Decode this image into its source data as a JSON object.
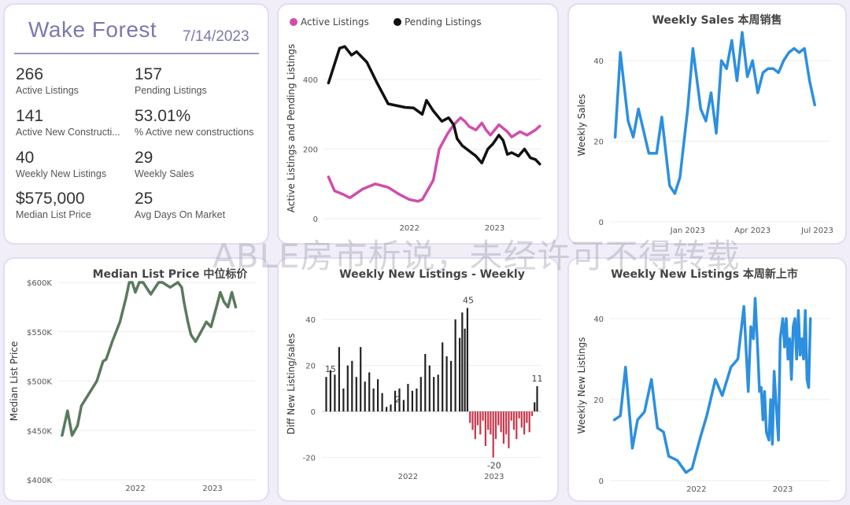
{
  "kpi_panel": {
    "title": "Wake Forest",
    "date": "7/14/2023",
    "items": [
      {
        "value": "266",
        "label": "Active Listings"
      },
      {
        "value": "157",
        "label": "Pending Listings"
      },
      {
        "value": "141",
        "label": "Active New Constructi..."
      },
      {
        "value": "53.01%",
        "label": "% Active new constructions"
      },
      {
        "value": "40",
        "label": "Weekly New Listings"
      },
      {
        "value": "29",
        "label": "Weekly Sales"
      },
      {
        "value": "$575,000",
        "label": "Median List Price"
      },
      {
        "value": "25",
        "label": "Avg Days On Market"
      }
    ]
  },
  "watermark": "ABLE房市析说，未经许可不得转载",
  "chart_data": [
    {
      "id": "listings",
      "type": "line",
      "title": "",
      "ylabel": "Active Listings and Pending Listings",
      "ylim": [
        0,
        520
      ],
      "yticks": [
        0,
        200,
        400
      ],
      "xlim": [
        2021.0,
        2023.55
      ],
      "xticks": [
        {
          "value": 2022.0,
          "label": "2022"
        },
        {
          "value": 2023.0,
          "label": "2023"
        }
      ],
      "legend_position": "top-left",
      "series": [
        {
          "name": "Active Listings",
          "color": "#d24dab",
          "points": [
            [
              2021.05,
              120
            ],
            [
              2021.12,
              80
            ],
            [
              2021.22,
              70
            ],
            [
              2021.3,
              60
            ],
            [
              2021.45,
              85
            ],
            [
              2021.6,
              100
            ],
            [
              2021.75,
              90
            ],
            [
              2021.88,
              70
            ],
            [
              2022.0,
              55
            ],
            [
              2022.1,
              50
            ],
            [
              2022.15,
              55
            ],
            [
              2022.28,
              110
            ],
            [
              2022.35,
              200
            ],
            [
              2022.45,
              245
            ],
            [
              2022.52,
              270
            ],
            [
              2022.6,
              290
            ],
            [
              2022.65,
              280
            ],
            [
              2022.7,
              265
            ],
            [
              2022.78,
              255
            ],
            [
              2022.85,
              275
            ],
            [
              2022.9,
              255
            ],
            [
              2022.95,
              240
            ],
            [
              2023.05,
              270
            ],
            [
              2023.15,
              250
            ],
            [
              2023.2,
              235
            ],
            [
              2023.3,
              250
            ],
            [
              2023.38,
              240
            ],
            [
              2023.48,
              255
            ],
            [
              2023.53,
              266
            ]
          ]
        },
        {
          "name": "Pending Listings",
          "color": "#111111",
          "points": [
            [
              2021.05,
              390
            ],
            [
              2021.18,
              490
            ],
            [
              2021.24,
              495
            ],
            [
              2021.32,
              470
            ],
            [
              2021.38,
              480
            ],
            [
              2021.5,
              450
            ],
            [
              2021.62,
              390
            ],
            [
              2021.75,
              330
            ],
            [
              2021.95,
              320
            ],
            [
              2022.05,
              318
            ],
            [
              2022.15,
              300
            ],
            [
              2022.2,
              340
            ],
            [
              2022.28,
              310
            ],
            [
              2022.38,
              280
            ],
            [
              2022.46,
              290
            ],
            [
              2022.52,
              270
            ],
            [
              2022.56,
              230
            ],
            [
              2022.62,
              210
            ],
            [
              2022.7,
              195
            ],
            [
              2022.78,
              180
            ],
            [
              2022.85,
              160
            ],
            [
              2022.92,
              200
            ],
            [
              2022.98,
              215
            ],
            [
              2023.05,
              240
            ],
            [
              2023.1,
              225
            ],
            [
              2023.15,
              185
            ],
            [
              2023.2,
              190
            ],
            [
              2023.28,
              180
            ],
            [
              2023.35,
              200
            ],
            [
              2023.42,
              175
            ],
            [
              2023.48,
              170
            ],
            [
              2023.53,
              157
            ]
          ]
        }
      ]
    },
    {
      "id": "weekly-sales",
      "type": "line",
      "title": "Weekly Sales 本周销售",
      "ylabel": "Weekly Sales",
      "ylim": [
        0,
        48
      ],
      "yticks": [
        0,
        20,
        40
      ],
      "xlim": [
        2022.7,
        2023.55
      ],
      "xticks": [
        {
          "value": 2023.0,
          "label": "Jan 2023"
        },
        {
          "value": 2023.25,
          "label": "Apr 2023"
        },
        {
          "value": 2023.5,
          "label": "Jul 2023"
        }
      ],
      "series": [
        {
          "name": "",
          "color": "#2d8fdf",
          "points": [
            [
              2022.72,
              21
            ],
            [
              2022.74,
              42
            ],
            [
              2022.77,
              25
            ],
            [
              2022.79,
              21
            ],
            [
              2022.81,
              28
            ],
            [
              2022.85,
              17
            ],
            [
              2022.88,
              17
            ],
            [
              2022.9,
              26
            ],
            [
              2022.93,
              9
            ],
            [
              2022.95,
              7
            ],
            [
              2022.97,
              11
            ],
            [
              2023.0,
              28
            ],
            [
              2023.02,
              43
            ],
            [
              2023.05,
              28
            ],
            [
              2023.07,
              25
            ],
            [
              2023.09,
              32
            ],
            [
              2023.11,
              22
            ],
            [
              2023.13,
              40
            ],
            [
              2023.15,
              38
            ],
            [
              2023.17,
              45
            ],
            [
              2023.19,
              35
            ],
            [
              2023.21,
              47
            ],
            [
              2023.23,
              36
            ],
            [
              2023.25,
              40
            ],
            [
              2023.27,
              32
            ],
            [
              2023.29,
              37
            ],
            [
              2023.31,
              38
            ],
            [
              2023.33,
              38
            ],
            [
              2023.35,
              37
            ],
            [
              2023.37,
              40
            ],
            [
              2023.39,
              42
            ],
            [
              2023.41,
              43
            ],
            [
              2023.43,
              42
            ],
            [
              2023.45,
              43
            ],
            [
              2023.47,
              35
            ],
            [
              2023.49,
              29
            ]
          ]
        }
      ]
    },
    {
      "id": "median-price",
      "type": "line",
      "title": "Median List Price  中位标价",
      "ylabel": "Median List Price",
      "ylim": [
        400000,
        600000
      ],
      "yticks": [
        {
          "value": 400000,
          "label": "$400K"
        },
        {
          "value": 450000,
          "label": "$450K"
        },
        {
          "value": 500000,
          "label": "$500K"
        },
        {
          "value": 550000,
          "label": "$550K"
        },
        {
          "value": 600000,
          "label": "$600K"
        }
      ],
      "xlim": [
        2021.0,
        2023.55
      ],
      "xticks": [
        {
          "value": 2022.0,
          "label": "2022"
        },
        {
          "value": 2023.0,
          "label": "2023"
        }
      ],
      "series": [
        {
          "name": "",
          "color": "#5a7a5e",
          "points": [
            [
              2021.05,
              445000
            ],
            [
              2021.12,
              470000
            ],
            [
              2021.18,
              445000
            ],
            [
              2021.25,
              455000
            ],
            [
              2021.3,
              475000
            ],
            [
              2021.5,
              500000
            ],
            [
              2021.58,
              520000
            ],
            [
              2021.62,
              522000
            ],
            [
              2021.7,
              540000
            ],
            [
              2021.8,
              560000
            ],
            [
              2021.88,
              585000
            ],
            [
              2021.92,
              600000
            ],
            [
              2021.96,
              600000
            ],
            [
              2022.0,
              590000
            ],
            [
              2022.05,
              600000
            ],
            [
              2022.1,
              600000
            ],
            [
              2022.2,
              588000
            ],
            [
              2022.3,
              600000
            ],
            [
              2022.35,
              600000
            ],
            [
              2022.45,
              595000
            ],
            [
              2022.55,
              600000
            ],
            [
              2022.6,
              595000
            ],
            [
              2022.63,
              580000
            ],
            [
              2022.68,
              560000
            ],
            [
              2022.72,
              547000
            ],
            [
              2022.78,
              540000
            ],
            [
              2022.85,
              550000
            ],
            [
              2022.92,
              560000
            ],
            [
              2022.98,
              555000
            ],
            [
              2023.05,
              575000
            ],
            [
              2023.1,
              590000
            ],
            [
              2023.15,
              580000
            ],
            [
              2023.2,
              575000
            ],
            [
              2023.25,
              590000
            ],
            [
              2023.3,
              575000
            ]
          ]
        }
      ]
    },
    {
      "id": "diff-listings",
      "type": "bar",
      "title": "Weekly New Listings - Weekly",
      "ylabel": "Diff New Listing/sales",
      "ylim": [
        -28,
        52
      ],
      "yticks": [
        -20,
        0,
        20,
        40
      ],
      "xlim": [
        2021.0,
        2023.55
      ],
      "xticks": [
        {
          "value": 2022.0,
          "label": "2022"
        },
        {
          "value": 2023.0,
          "label": "2023"
        }
      ],
      "positive_color": "#222222",
      "negative_color": "#c9354a",
      "data_labels": [
        {
          "x": 2021.1,
          "value": "15"
        },
        {
          "x": 2021.88,
          "value": "2"
        },
        {
          "x": 2022.7,
          "value": "45"
        },
        {
          "x": 2023.0,
          "value": "-20"
        },
        {
          "x": 2023.5,
          "value": "11"
        }
      ],
      "x": [
        2021.05,
        2021.1,
        2021.15,
        2021.2,
        2021.25,
        2021.3,
        2021.35,
        2021.4,
        2021.45,
        2021.5,
        2021.55,
        2021.6,
        2021.65,
        2021.7,
        2021.75,
        2021.8,
        2021.85,
        2021.9,
        2021.95,
        2022.0,
        2022.05,
        2022.1,
        2022.15,
        2022.2,
        2022.25,
        2022.3,
        2022.35,
        2022.4,
        2022.45,
        2022.5,
        2022.55,
        2022.6,
        2022.63,
        2022.66,
        2022.69,
        2022.72,
        2022.75,
        2022.78,
        2022.81,
        2022.84,
        2022.87,
        2022.9,
        2022.93,
        2022.96,
        2022.99,
        2023.02,
        2023.05,
        2023.08,
        2023.11,
        2023.14,
        2023.17,
        2023.2,
        2023.23,
        2023.26,
        2023.29,
        2023.32,
        2023.35,
        2023.38,
        2023.41,
        2023.44,
        2023.47,
        2023.5
      ],
      "values": [
        15,
        18,
        16,
        28,
        10,
        20,
        22,
        15,
        28,
        13,
        17,
        10,
        14,
        8,
        2,
        3,
        9,
        10,
        5,
        12,
        9,
        10,
        15,
        25,
        20,
        15,
        16,
        30,
        24,
        22,
        40,
        32,
        43,
        36,
        45,
        -5,
        -8,
        -12,
        -6,
        -10,
        -4,
        -15,
        -8,
        -10,
        -20,
        -12,
        -6,
        -9,
        -14,
        -10,
        -16,
        -4,
        -8,
        -12,
        -3,
        -7,
        -10,
        -5,
        -9,
        -2,
        4,
        11
      ]
    },
    {
      "id": "weekly-new-listings",
      "type": "line",
      "title": "Weekly New Listings  本周新上市",
      "ylabel": "Weekly New Listings",
      "ylim": [
        0,
        47
      ],
      "yticks": [
        0,
        20,
        40
      ],
      "xlim": [
        2021.0,
        2023.55
      ],
      "xticks": [
        {
          "value": 2022.0,
          "label": "2022"
        },
        {
          "value": 2023.0,
          "label": "2023"
        }
      ],
      "series": [
        {
          "name": "",
          "color": "#2d8fdf",
          "points": [
            [
              2021.05,
              15
            ],
            [
              2021.12,
              16
            ],
            [
              2021.18,
              28
            ],
            [
              2021.26,
              8
            ],
            [
              2021.32,
              15
            ],
            [
              2021.4,
              17
            ],
            [
              2021.48,
              25
            ],
            [
              2021.55,
              13
            ],
            [
              2021.62,
              12
            ],
            [
              2021.68,
              6
            ],
            [
              2021.78,
              5
            ],
            [
              2021.88,
              2
            ],
            [
              2021.95,
              3
            ],
            [
              2022.05,
              11
            ],
            [
              2022.12,
              16
            ],
            [
              2022.22,
              25
            ],
            [
              2022.3,
              21
            ],
            [
              2022.4,
              28
            ],
            [
              2022.48,
              30
            ],
            [
              2022.55,
              43
            ],
            [
              2022.6,
              22
            ],
            [
              2022.63,
              38
            ],
            [
              2022.66,
              35
            ],
            [
              2022.68,
              45
            ],
            [
              2022.71,
              32
            ],
            [
              2022.73,
              22
            ],
            [
              2022.75,
              23
            ],
            [
              2022.77,
              15
            ],
            [
              2022.79,
              22
            ],
            [
              2022.81,
              12
            ],
            [
              2022.84,
              10
            ],
            [
              2022.86,
              20
            ],
            [
              2022.88,
              9
            ],
            [
              2022.9,
              27
            ],
            [
              2022.92,
              20
            ],
            [
              2022.95,
              10
            ],
            [
              2022.97,
              35
            ],
            [
              2023.0,
              40
            ],
            [
              2023.02,
              33
            ],
            [
              2023.04,
              40
            ],
            [
              2023.06,
              30
            ],
            [
              2023.08,
              35
            ],
            [
              2023.1,
              25
            ],
            [
              2023.12,
              38
            ],
            [
              2023.14,
              40
            ],
            [
              2023.16,
              30
            ],
            [
              2023.18,
              42
            ],
            [
              2023.2,
              31
            ],
            [
              2023.22,
              35
            ],
            [
              2023.24,
              30
            ],
            [
              2023.26,
              42
            ],
            [
              2023.28,
              25
            ],
            [
              2023.3,
              23
            ],
            [
              2023.32,
              40
            ]
          ]
        }
      ]
    }
  ]
}
